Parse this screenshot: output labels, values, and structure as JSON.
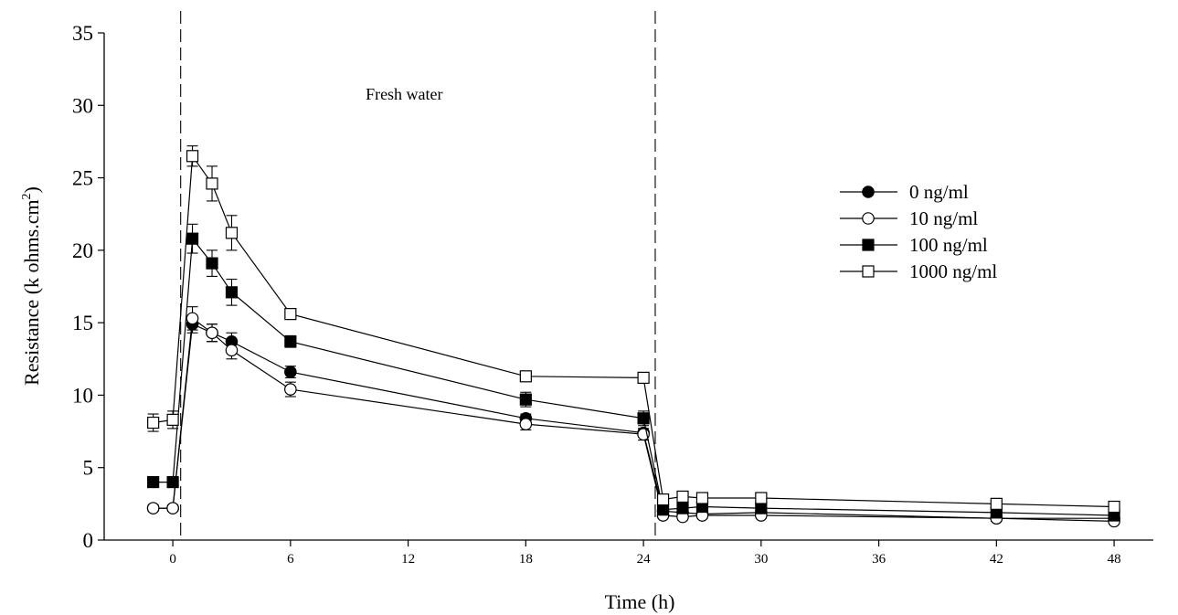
{
  "chart_data": {
    "type": "line",
    "title": "",
    "xlabel": "Time (h)",
    "ylabel": "Resistance (k ohms.cm",
    "ylabel_sup": "2",
    "ylabel_close": ")",
    "xlim": [
      -3.5,
      50
    ],
    "ylim": [
      0,
      35
    ],
    "x_ticks": [
      0,
      6,
      12,
      18,
      24,
      30,
      36,
      42,
      48
    ],
    "x_tick_labels": [
      "0",
      "6",
      "12",
      "18",
      "24",
      "30",
      "36",
      "42",
      "48"
    ],
    "y_ticks": [
      0,
      5,
      10,
      15,
      20,
      25,
      30,
      35
    ],
    "y_tick_labels": [
      "0",
      "5",
      "10",
      "15",
      "20",
      "25",
      "30",
      "35"
    ],
    "grid": false,
    "legend_position": "right",
    "vlines": [
      0.4,
      24.6
    ],
    "annotations": [
      {
        "text": "Fresh water",
        "x": 11.8,
        "y": 30.4
      }
    ],
    "x": [
      -1,
      0,
      1,
      2,
      3,
      6,
      18,
      24,
      25,
      26,
      27,
      30,
      42,
      48
    ],
    "series": [
      {
        "name": "0 ng/ml",
        "marker": "circle",
        "filled": true,
        "values": [
          2.2,
          2.2,
          14.9,
          14.3,
          13.7,
          11.6,
          8.4,
          7.4,
          2.0,
          1.9,
          1.8,
          1.9,
          1.5,
          1.5
        ],
        "errors": [
          0.2,
          0.2,
          0.6,
          0.6,
          0.6,
          0.4,
          0.3,
          0.3,
          0.2,
          0.2,
          0.2,
          0.2,
          0.2,
          0.2
        ]
      },
      {
        "name": "10 ng/ml",
        "marker": "circle",
        "filled": false,
        "values": [
          2.2,
          2.2,
          15.3,
          14.3,
          13.1,
          10.4,
          8.0,
          7.3,
          1.7,
          1.6,
          1.7,
          1.7,
          1.5,
          1.3
        ],
        "errors": [
          0.2,
          0.2,
          0.8,
          0.6,
          0.6,
          0.5,
          0.4,
          0.4,
          0.2,
          0.2,
          0.2,
          0.2,
          0.2,
          0.2
        ]
      },
      {
        "name": "100 ng/ml",
        "marker": "square",
        "filled": true,
        "values": [
          4.0,
          4.0,
          20.8,
          19.1,
          17.1,
          13.7,
          9.7,
          8.4,
          2.1,
          2.2,
          2.3,
          2.2,
          1.9,
          1.7
        ],
        "errors": [
          0.2,
          0.2,
          1.0,
          0.9,
          0.9,
          0.4,
          0.5,
          0.5,
          0.2,
          0.2,
          0.2,
          0.2,
          0.2,
          0.2
        ]
      },
      {
        "name": "1000 ng/ml",
        "marker": "square",
        "filled": false,
        "values": [
          8.1,
          8.3,
          26.5,
          24.6,
          21.2,
          15.6,
          11.3,
          11.2,
          2.8,
          3.0,
          2.9,
          2.9,
          2.5,
          2.3
        ],
        "errors": [
          0.6,
          0.6,
          0.7,
          1.2,
          1.2,
          0.3,
          0.3,
          0.3,
          0.2,
          0.2,
          0.2,
          0.2,
          0.2,
          0.2
        ]
      }
    ]
  }
}
